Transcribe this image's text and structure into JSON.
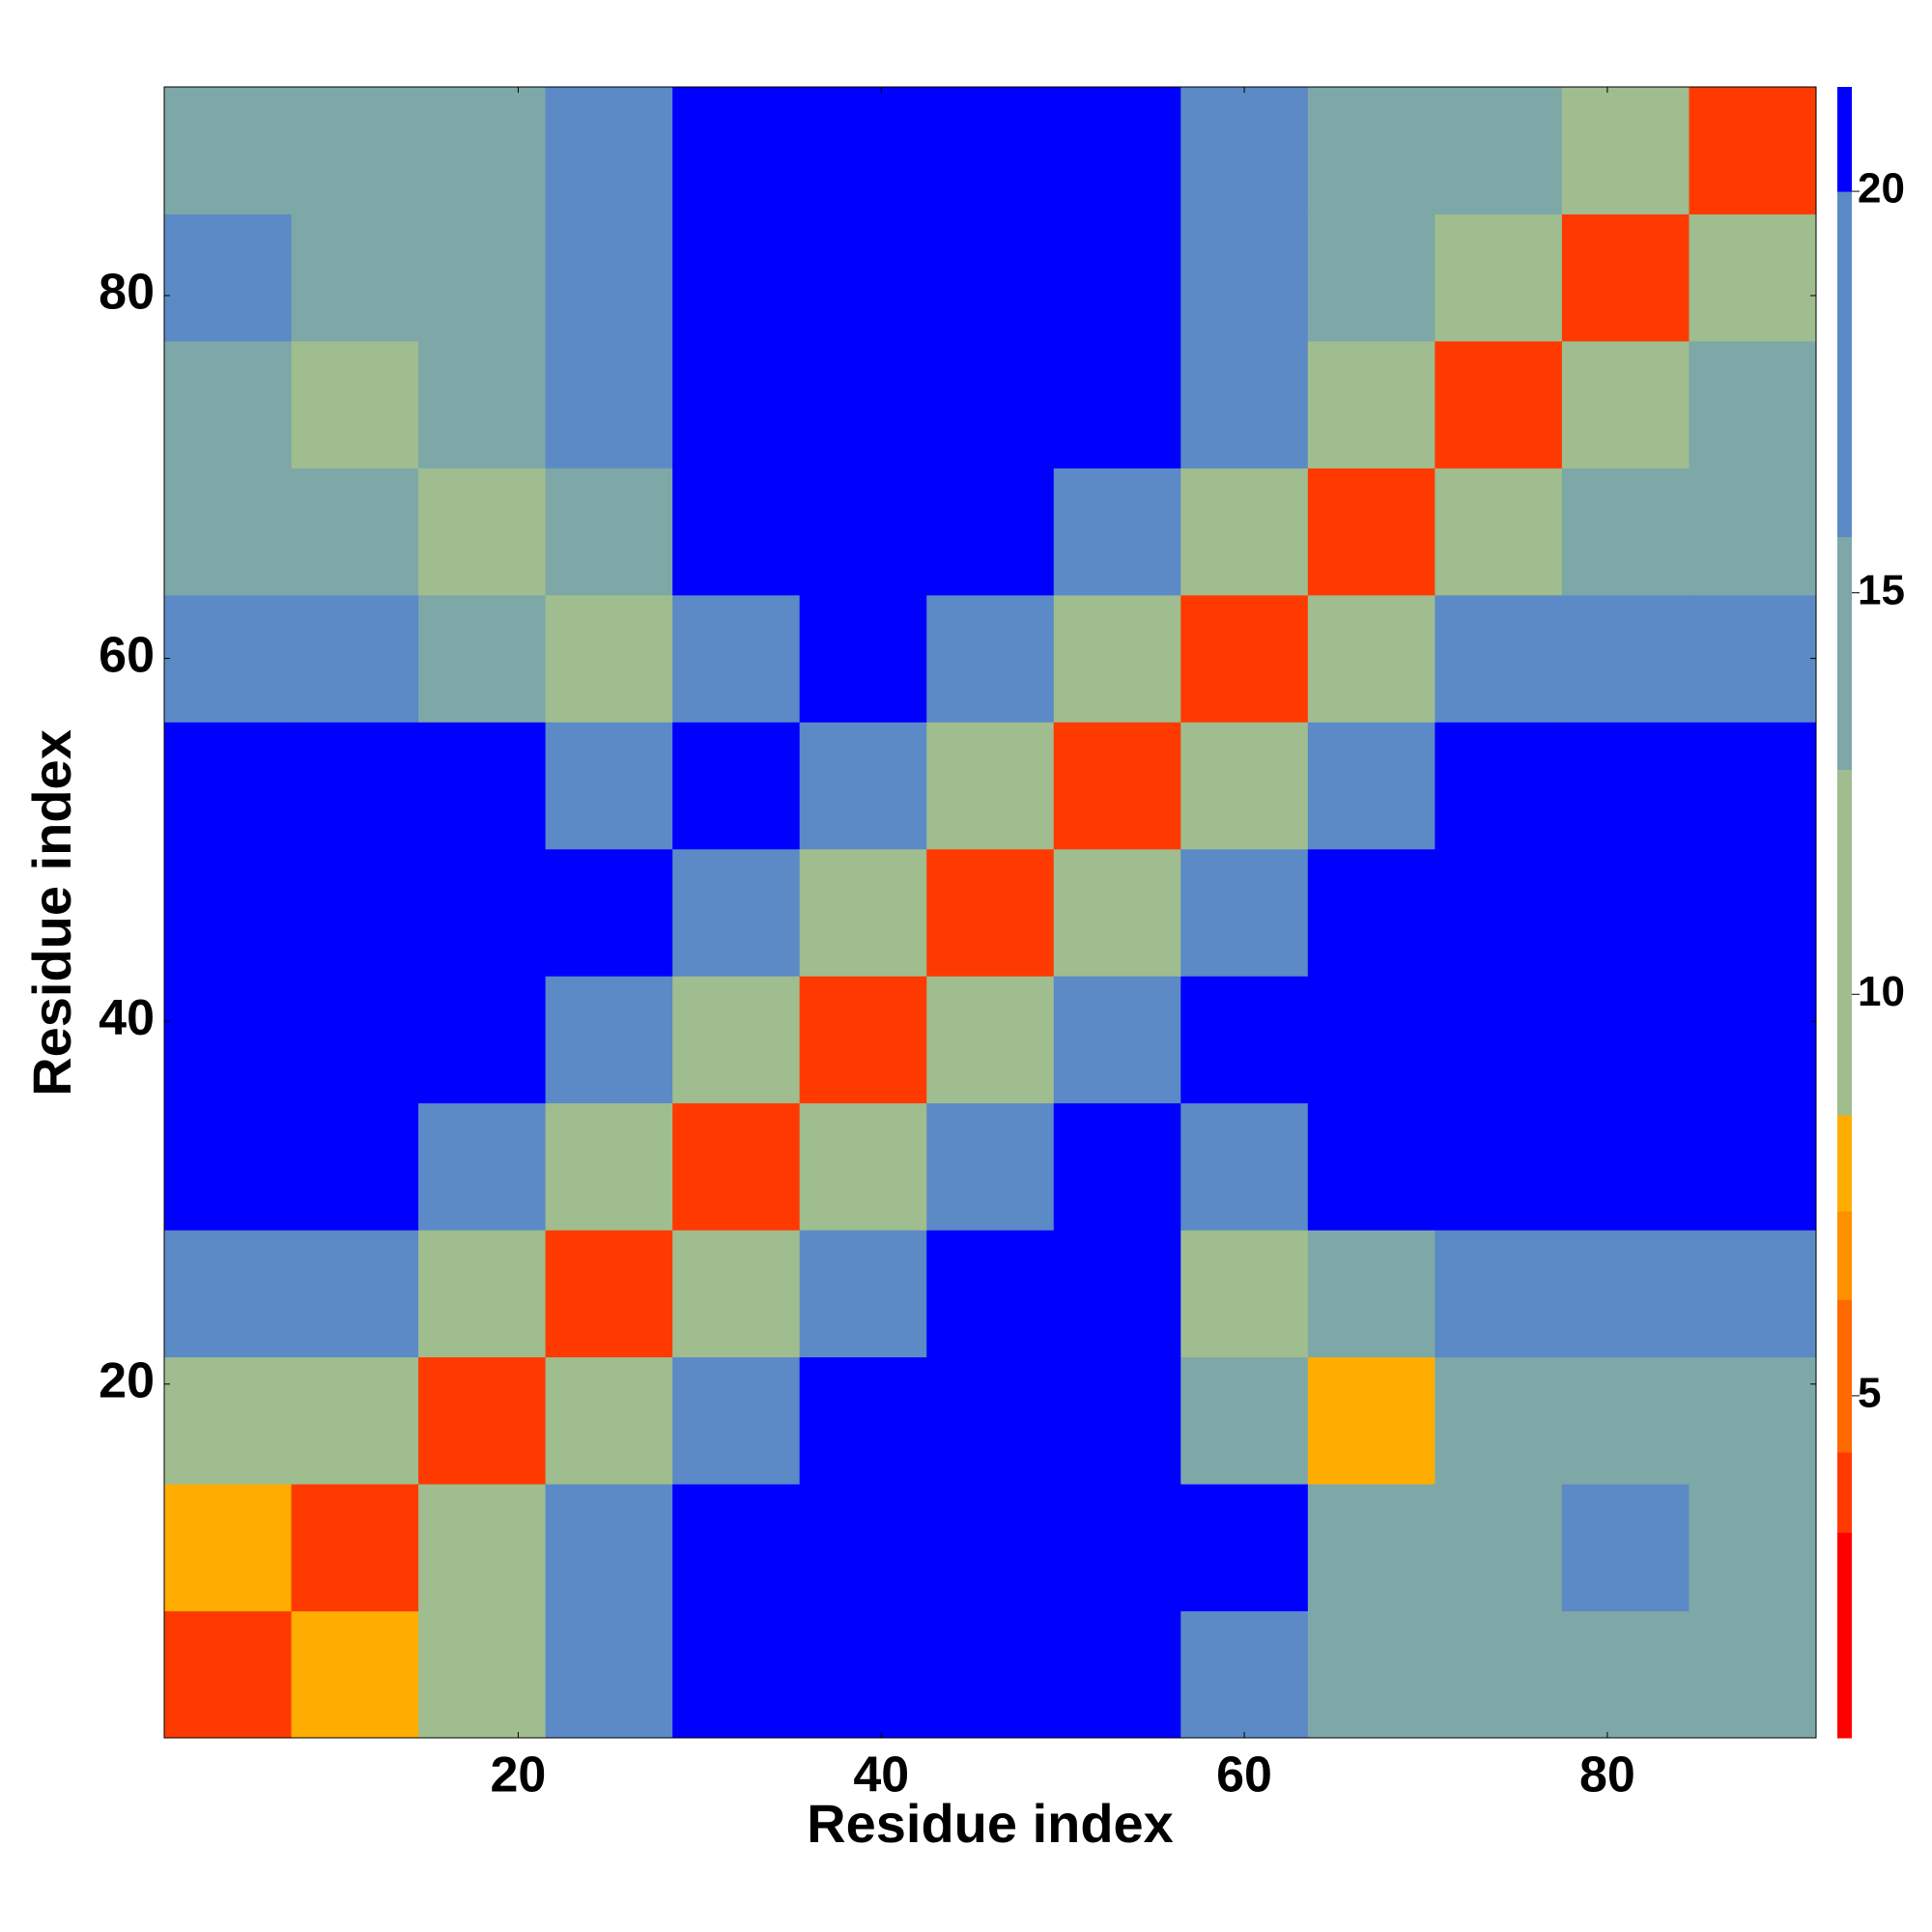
{
  "chart_data": {
    "type": "heatmap",
    "x_label": "Residue index",
    "y_label": "Residue index",
    "xbins": [
      0.5,
      7.5,
      14.5,
      21.5,
      28.5,
      35.5,
      42.5,
      49.5,
      56.5,
      63.5,
      70.5,
      77.5,
      84.5,
      91.5
    ],
    "ybins": [
      0.5,
      7.5,
      14.5,
      21.5,
      28.5,
      35.5,
      42.5,
      49.5,
      56.5,
      63.5,
      70.5,
      77.5,
      84.5,
      91.5
    ],
    "z": [
      [
        4,
        8,
        9,
        16,
        21,
        21,
        21,
        21,
        17,
        14,
        13,
        14,
        14
      ],
      [
        8,
        4,
        11,
        17,
        21,
        21,
        21,
        21,
        21,
        15,
        14,
        16,
        15
      ],
      [
        9,
        11,
        4,
        10,
        16,
        21,
        21,
        21,
        15,
        8,
        13,
        14,
        15
      ],
      [
        16,
        17,
        10,
        4,
        10,
        17,
        21,
        21,
        11,
        15,
        17,
        17,
        17
      ],
      [
        21,
        21,
        16,
        10,
        4,
        10,
        17,
        21,
        18,
        21,
        21,
        21,
        21
      ],
      [
        21,
        21,
        21,
        17,
        10,
        4,
        11,
        18,
        21,
        21,
        21,
        21,
        21
      ],
      [
        21,
        21,
        21,
        21,
        17,
        11,
        4,
        11,
        18,
        21,
        21,
        21,
        21
      ],
      [
        21,
        21,
        21,
        19,
        21,
        18,
        11,
        4,
        10,
        18,
        21,
        21,
        21
      ],
      [
        17,
        16,
        15,
        10,
        18,
        21,
        18,
        10,
        4,
        10,
        17,
        16,
        19
      ],
      [
        14,
        14,
        9,
        15,
        21,
        21,
        21,
        18,
        10,
        4,
        10,
        13,
        14
      ],
      [
        14,
        12,
        14,
        17,
        21,
        21,
        21,
        21,
        17,
        10,
        4,
        10,
        13
      ],
      [
        16,
        15,
        14,
        17,
        21,
        21,
        21,
        21,
        16,
        13,
        10,
        4,
        10
      ],
      [
        14,
        14,
        13,
        19,
        21,
        21,
        21,
        21,
        19,
        14,
        13,
        10,
        4
      ]
    ],
    "xlim": [
      0.5,
      91.5
    ],
    "ylim": [
      0.5,
      91.5
    ],
    "xticks": [
      20,
      40,
      60,
      80
    ],
    "yticks": [
      20,
      40,
      60,
      80
    ],
    "zlim": [
      0.74,
      21.3
    ],
    "zticks": [
      5,
      10,
      15,
      20
    ],
    "colorscale": [
      {
        "max": 3.3,
        "color": "#ff0000"
      },
      {
        "max": 4.3,
        "color": "#ff3a00"
      },
      {
        "max": 6.2,
        "color": "#ff6a00"
      },
      {
        "max": 7.3,
        "color": "#ff9000"
      },
      {
        "max": 8.5,
        "color": "#ffad00"
      },
      {
        "max": 12.8,
        "color": "#9fbd8e"
      },
      {
        "max": 15.7,
        "color": "#7ea7a8"
      },
      {
        "max": 20,
        "color": "#5b8ac6"
      },
      {
        "max": 21.3,
        "color": "#0000ff"
      }
    ]
  }
}
